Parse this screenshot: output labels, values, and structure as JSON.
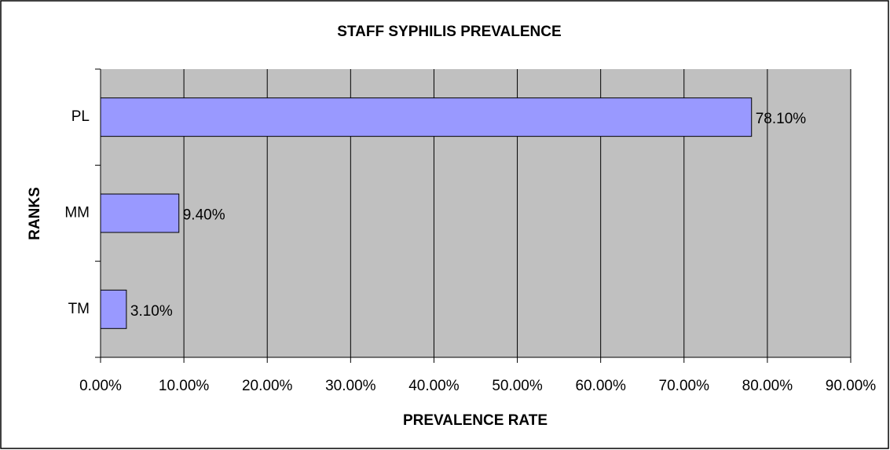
{
  "chart_data": {
    "type": "bar",
    "orientation": "horizontal",
    "title": "STAFF SYPHILIS PREVALENCE",
    "x_label": "PREVALENCE RATE",
    "y_label": "RANKS",
    "categories": [
      "PL",
      "MM",
      "TM"
    ],
    "values": [
      78.1,
      9.4,
      3.1
    ],
    "value_labels": [
      "78.10%",
      "9.40%",
      "3.10%"
    ],
    "color": "#9999ff",
    "xlim": [
      0,
      90
    ],
    "xticks": [
      {
        "value": 0,
        "label": "0.00%"
      },
      {
        "value": 10,
        "label": "10.00%"
      },
      {
        "value": 20,
        "label": "20.00%"
      },
      {
        "value": 30,
        "label": "30.00%"
      },
      {
        "value": 40,
        "label": "40.00%"
      },
      {
        "value": 50,
        "label": "50.00%"
      },
      {
        "value": 60,
        "label": "60.00%"
      },
      {
        "value": 70,
        "label": "70.00%"
      },
      {
        "value": 80,
        "label": "80.00%"
      },
      {
        "value": 90,
        "label": "90.00%"
      }
    ],
    "grid": true
  }
}
